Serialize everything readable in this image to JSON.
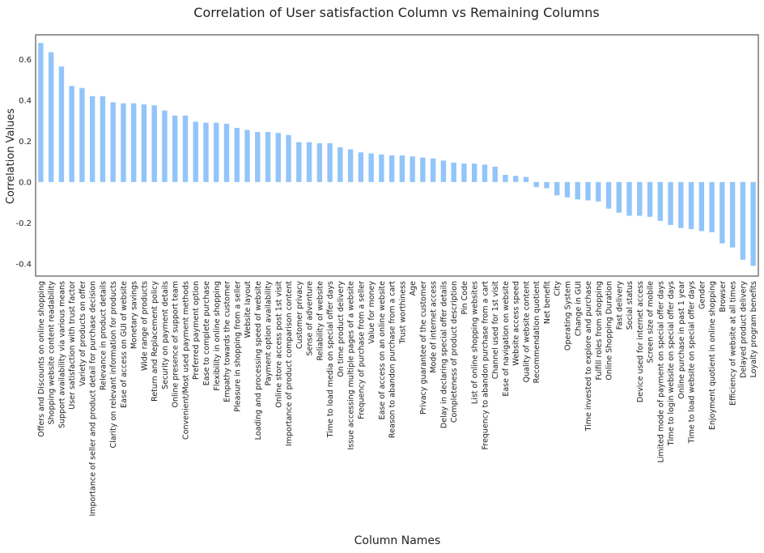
{
  "chart_data": {
    "type": "bar",
    "title": "Correlation of User satisfaction Column vs Remaining Columns",
    "xlabel": "Column Names",
    "ylabel": "Correlation Values",
    "ylim": [
      -0.46,
      0.72
    ],
    "yticks": [
      -0.4,
      -0.2,
      0.0,
      0.2,
      0.4,
      0.6
    ],
    "grid": false,
    "bar_color": "#92c5f9",
    "categories": [
      "Offers and Discounts on online shopping",
      "Shopping website content readability",
      "Support availability via various means",
      "User satisfaction with trust factor",
      "Variety of products on offer",
      "Importance of seller and product detail for purchase decision",
      "Relevance in product details",
      "Clarity on relevant information for products",
      "Ease of access on GUI of website",
      "Monetary savings",
      "Wide range of products",
      "Return and Replacement policy",
      "Security on payment details",
      "Online presence of support team",
      "Convenient/Most used payment methods",
      "Preferred payment option",
      "Ease to complete purchase",
      "Flexibility in online shopping",
      "Empathy towards the customer",
      "Pleasure in shopping from a seller",
      "Website layout",
      "Loading and processing speed of website",
      "Payment option availability",
      "Online store access post 1st visit",
      "Importance of product comparison content",
      "Customer privacy",
      "Sense of adventure",
      "Reliability of website",
      "Time to load media on special offer days",
      "On time product delivery",
      "Issue accessing multiple pages of a website",
      "Frequency of purchase from a seller",
      "Value for money",
      "Ease of access on an online website",
      "Reason to abandon purchase from a cart",
      "Trust worthiness",
      "Age",
      "Privacy guarantee of the customer",
      "Mode of internet access",
      "Delay in declaring special offer details",
      "Completeness of product description",
      "Pin Code",
      "List of online shopping websites",
      "Frequency to abandon purchase from a cart",
      "Channel used for 1st visit",
      "Ease of navigation on website",
      "Website access speed",
      "Quality of website content",
      "Recommendation quotient",
      "Net benefit",
      "City",
      "Operating System",
      "Change in GUI",
      "Time invested to explore and purchase",
      "Fulfill roles from shopping",
      "Online Shopping Duration",
      "Fast delivery",
      "Social status",
      "Device used for internet access",
      "Screen size of mobile",
      "Limited mode of payment on special offer days",
      "Time to login website on special offer days",
      "Online purchase in past 1 year",
      "Time to load website on special offer days",
      "Gender",
      "Enjoyment quotient in online shopping",
      "Browser",
      "Efficiency of website at all times",
      "Delayed product delivery",
      "Loyalty program benefits"
    ],
    "values": [
      0.68,
      0.635,
      0.565,
      0.47,
      0.46,
      0.42,
      0.42,
      0.39,
      0.385,
      0.385,
      0.38,
      0.375,
      0.35,
      0.325,
      0.325,
      0.295,
      0.29,
      0.29,
      0.285,
      0.265,
      0.255,
      0.245,
      0.245,
      0.24,
      0.23,
      0.195,
      0.195,
      0.19,
      0.19,
      0.17,
      0.16,
      0.145,
      0.14,
      0.135,
      0.13,
      0.13,
      0.125,
      0.12,
      0.115,
      0.105,
      0.095,
      0.09,
      0.09,
      0.085,
      0.075,
      0.035,
      0.03,
      0.025,
      -0.025,
      -0.03,
      -0.065,
      -0.075,
      -0.085,
      -0.09,
      -0.095,
      -0.13,
      -0.15,
      -0.165,
      -0.165,
      -0.17,
      -0.19,
      -0.21,
      -0.225,
      -0.23,
      -0.24,
      -0.245,
      -0.3,
      -0.32,
      -0.38,
      -0.41
    ]
  }
}
